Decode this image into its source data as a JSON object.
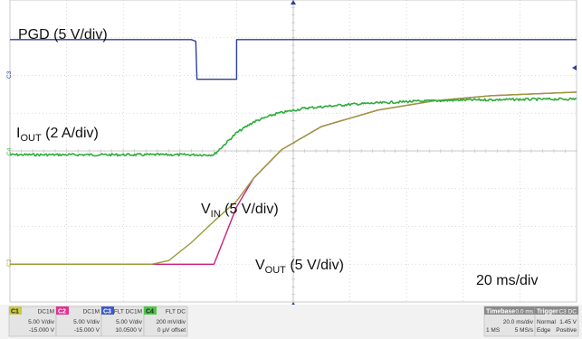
{
  "chart_data": {
    "type": "line",
    "x_axis": {
      "divisions": 10,
      "per_div_label": "20 ms/div"
    },
    "y_axis": {
      "divisions": 8
    },
    "grid": true,
    "series": [
      {
        "id": "C3",
        "name": "PGD (5 V/div)",
        "color": "#2b3f9e",
        "points": [
          [
            0,
            1.0
          ],
          [
            3.2,
            1.0
          ],
          [
            3.2,
            1.0
          ],
          [
            3.28,
            0.96
          ],
          [
            3.3,
            0.0
          ],
          [
            4.0,
            0.0
          ],
          [
            4.0,
            1.0
          ],
          [
            10.0,
            1.0
          ]
        ]
      },
      {
        "id": "C4",
        "name": "IOUT (2 A/div)",
        "color": "#2eab3c",
        "points": [
          [
            0,
            0
          ],
          [
            3.6,
            0
          ],
          [
            3.8,
            0.2
          ],
          [
            4.0,
            0.4
          ],
          [
            4.3,
            0.6
          ],
          [
            4.7,
            0.75
          ],
          [
            5.2,
            0.85
          ],
          [
            6.0,
            0.92
          ],
          [
            7.0,
            0.97
          ],
          [
            8.0,
            1.0
          ],
          [
            10.0,
            1.02
          ]
        ]
      },
      {
        "id": "C2",
        "name": "VOUT (5 V/div)",
        "color": "#cc1f7a",
        "points": [
          [
            0,
            0
          ],
          [
            2.5,
            0
          ],
          [
            3.6,
            0
          ],
          [
            4.0,
            0.8
          ],
          [
            4.3,
            1.2
          ],
          [
            4.8,
            1.6
          ],
          [
            5.5,
            1.92
          ],
          [
            6.5,
            2.15
          ],
          [
            7.5,
            2.28
          ],
          [
            8.5,
            2.35
          ],
          [
            10.0,
            2.4
          ]
        ]
      },
      {
        "id": "C1",
        "name": "VIN (5 V/div)",
        "color": "#9a9a3a",
        "points": [
          [
            0,
            0
          ],
          [
            2.5,
            0
          ],
          [
            2.8,
            0.05
          ],
          [
            3.2,
            0.3
          ],
          [
            3.6,
            0.6
          ],
          [
            4.0,
            0.88
          ],
          [
            4.3,
            1.2
          ],
          [
            4.8,
            1.6
          ],
          [
            5.5,
            1.92
          ],
          [
            6.5,
            2.15
          ],
          [
            7.5,
            2.28
          ],
          [
            8.5,
            2.35
          ],
          [
            10.0,
            2.4
          ]
        ]
      }
    ],
    "labels": {
      "pgd": "PGD (5 V/div)",
      "iout_main": "I",
      "iout_sub": "OUT",
      "iout_rest": " (2 A/div)",
      "vin_main": "V",
      "vin_sub": "IN",
      "vin_rest": " (5 V/div)",
      "vout_main": "V",
      "vout_sub": "OUT",
      "vout_rest": " (5 V/div)",
      "timebase": "20 ms/div"
    },
    "channel_markers": {
      "c3": "C3",
      "c4": "C4",
      "c2": "C2"
    }
  },
  "status_bar": {
    "channels": [
      {
        "id": "C1",
        "mode": "DC1M",
        "scale": "5.00 V/div",
        "offset": "-15.000 V",
        "color": "#c8c94a"
      },
      {
        "id": "C2",
        "mode": "DC1M",
        "scale": "5.00 V/div",
        "offset": "-15.000 V",
        "color": "#e0338d"
      },
      {
        "id": "C3",
        "mode": "FLT DC1M",
        "scale": "5.00 V/div",
        "offset": "10.0500 V",
        "color": "#4059c7"
      },
      {
        "id": "C4",
        "mode": "FLT DC",
        "scale": "200 mV/div",
        "offset": "0 µV offset",
        "color": "#4ec44a"
      }
    ],
    "timebase": {
      "title": "Timebase",
      "delay": "0.0 ms",
      "rate": "20.0 ms/div",
      "samples": "1 MS",
      "srate": "5 MS/s"
    },
    "trigger": {
      "title": "Trigger",
      "src": "C3 DC",
      "mode": "Normal",
      "level": "1.45 V",
      "type": "Edge",
      "slope": "Positive"
    }
  }
}
